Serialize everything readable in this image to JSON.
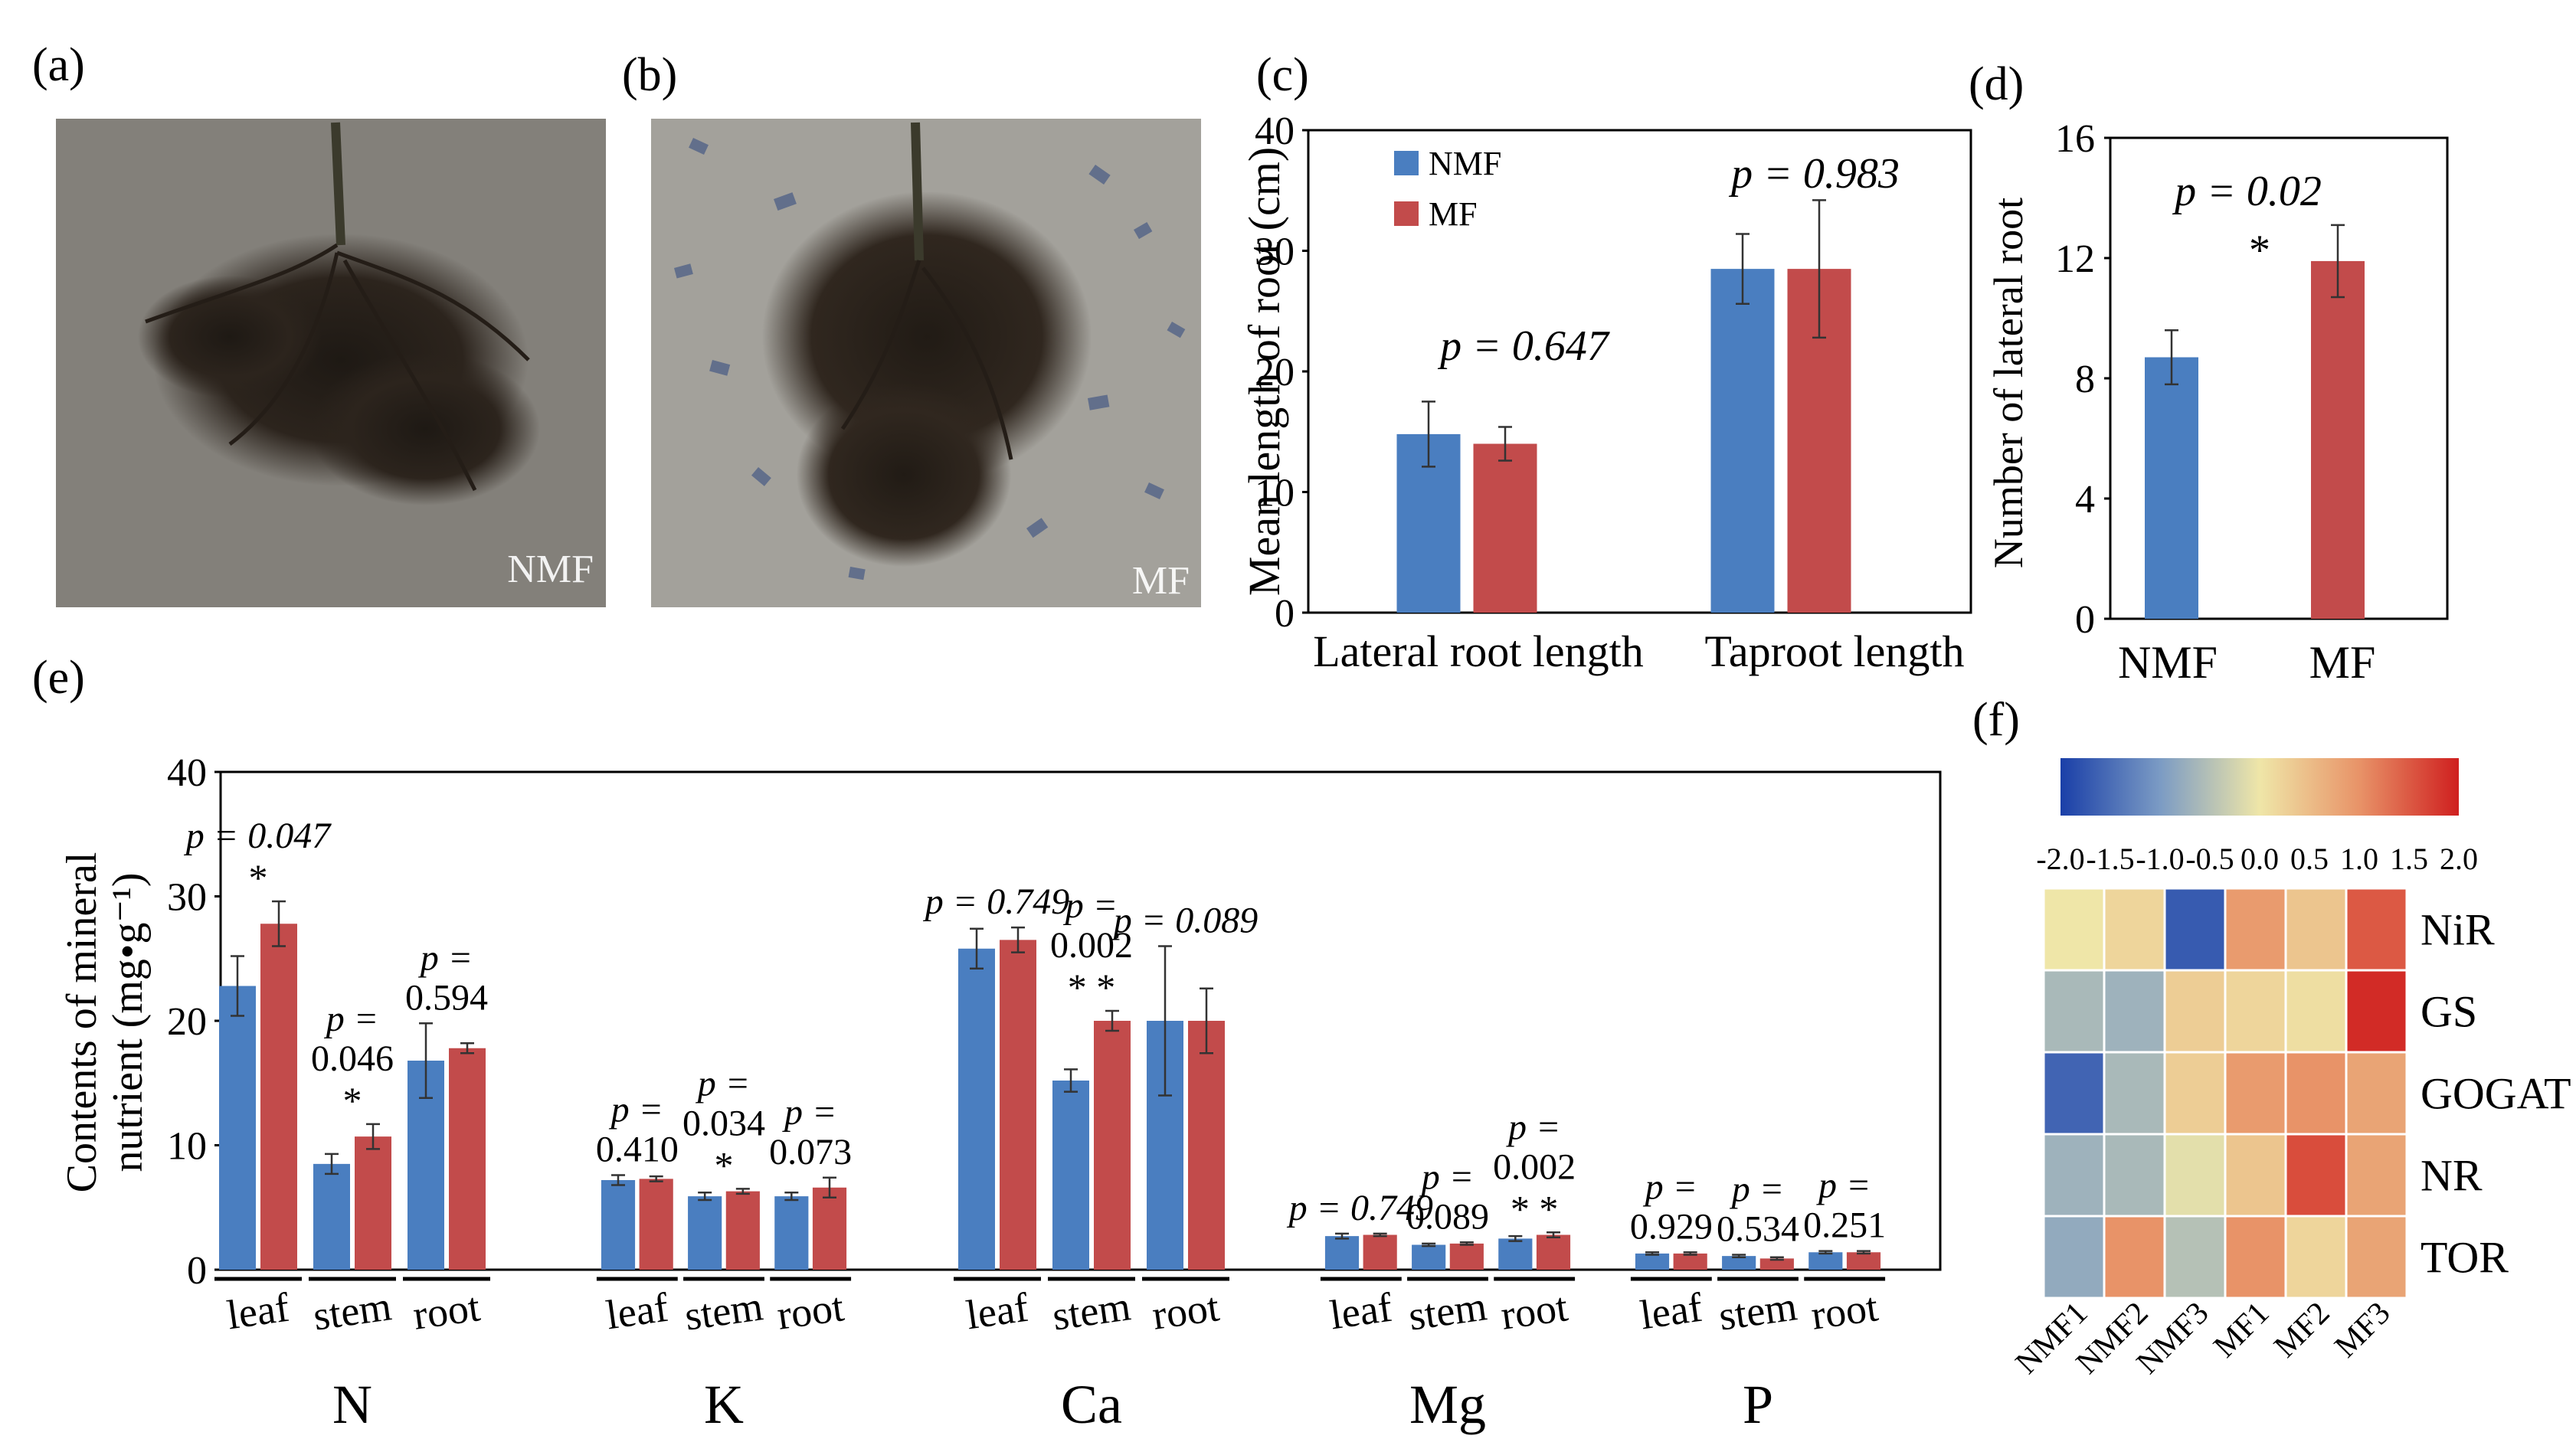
{
  "colors": {
    "nmf": "#4A7EC0",
    "mf": "#C24B4B",
    "photo_soil": "#8a8780",
    "photo_soil_mf": "#a3a19b"
  },
  "panels": {
    "a": "(a)",
    "b": "(b)",
    "c": "(c)",
    "d": "(d)",
    "e": "(e)",
    "f": "(f)"
  },
  "photos": {
    "a_label": "NMF",
    "b_label": "MF"
  },
  "chart_data": [
    {
      "id": "c",
      "type": "bar",
      "ylabel": "Mean length of root (cm)",
      "ylim": [
        0,
        40
      ],
      "yticks": [
        "0",
        "10",
        "20",
        "30",
        "40"
      ],
      "categories": [
        "Lateral root length",
        "Taproot length"
      ],
      "legend": [
        "NMF",
        "MF"
      ],
      "legend_position": "top-left",
      "series": [
        {
          "name": "NMF",
          "values": [
            14.8,
            28.5
          ],
          "errors": [
            2.7,
            2.9
          ]
        },
        {
          "name": "MF",
          "values": [
            14.0,
            28.5
          ],
          "errors": [
            1.4,
            5.7
          ]
        }
      ],
      "annotations": [
        "p = 0.647",
        "p = 0.983"
      ]
    },
    {
      "id": "d",
      "type": "bar",
      "ylabel": "Number of lateral root",
      "ylim": [
        0,
        16
      ],
      "yticks": [
        "0",
        "4",
        "8",
        "12",
        "16"
      ],
      "categories": [
        "NMF",
        "MF"
      ],
      "values": [
        8.7,
        11.9
      ],
      "errors": [
        0.9,
        1.2
      ],
      "annotations": [
        "p = 0.02",
        "*"
      ]
    },
    {
      "id": "e",
      "type": "bar",
      "ylabel_line1": "Contents of mineral",
      "ylabel_line2": "nutrient (mg•g⁻¹)",
      "ylim": [
        0,
        40
      ],
      "yticks": [
        "0",
        "10",
        "20",
        "30",
        "40"
      ],
      "tissues": [
        "leaf",
        "stem",
        "root"
      ],
      "groups": [
        {
          "name": "N",
          "nmf": [
            22.8,
            8.5,
            16.8
          ],
          "mf": [
            27.8,
            10.7,
            17.8
          ],
          "nmf_err": [
            2.4,
            0.8,
            3.0
          ],
          "mf_err": [
            1.8,
            1.0,
            0.4
          ],
          "pvals": [
            [
              "p = 0.047"
            ],
            [
              "p =",
              "0.046"
            ],
            [
              "p =",
              "0.594"
            ]
          ],
          "stars": [
            "*",
            "*",
            ""
          ]
        },
        {
          "name": "K",
          "nmf": [
            7.2,
            5.9,
            5.9
          ],
          "mf": [
            7.3,
            6.3,
            6.6
          ],
          "nmf_err": [
            0.4,
            0.3,
            0.3
          ],
          "mf_err": [
            0.2,
            0.2,
            0.8
          ],
          "pvals": [
            [
              "p =",
              "0.410"
            ],
            [
              "p =",
              "0.034"
            ],
            [
              "p =",
              "0.073"
            ]
          ],
          "stars": [
            "",
            "*",
            ""
          ]
        },
        {
          "name": "Ca",
          "nmf": [
            25.8,
            15.2,
            20.0
          ],
          "mf": [
            26.5,
            20.0,
            20.0
          ],
          "nmf_err": [
            1.6,
            0.9,
            6.0
          ],
          "mf_err": [
            1.0,
            0.8,
            2.6
          ],
          "pvals": [
            [
              "p = 0.749"
            ],
            [
              "p =",
              "0.002"
            ],
            [
              "p = 0.089"
            ]
          ],
          "stars": [
            "",
            "**",
            ""
          ]
        },
        {
          "name": "Mg",
          "nmf": [
            2.7,
            2.0,
            2.5
          ],
          "mf": [
            2.8,
            2.1,
            2.8
          ],
          "nmf_err": [
            0.2,
            0.1,
            0.2
          ],
          "mf_err": [
            0.1,
            0.1,
            0.2
          ],
          "pvals": [
            [
              "p = 0.749"
            ],
            [
              "p =",
              "0.089"
            ],
            [
              "p =",
              "0.002"
            ]
          ],
          "stars": [
            "",
            "",
            "**"
          ]
        },
        {
          "name": "P",
          "nmf": [
            1.3,
            1.1,
            1.4
          ],
          "mf": [
            1.3,
            0.9,
            1.4
          ],
          "nmf_err": [
            0.1,
            0.1,
            0.1
          ],
          "mf_err": [
            0.1,
            0.1,
            0.1
          ],
          "pvals": [
            [
              "p =",
              "0.929"
            ],
            [
              "p =",
              "0.534"
            ],
            [
              "p =",
              "0.251"
            ]
          ],
          "stars": [
            "",
            "",
            ""
          ]
        }
      ]
    },
    {
      "id": "f",
      "type": "heatmap",
      "rows": [
        "NiR",
        "GS",
        "GOGAT",
        "NR",
        "TOR"
      ],
      "cols": [
        "NMF1",
        "NMF2",
        "NMF3",
        "MF1",
        "MF2",
        "MF3"
      ],
      "values": [
        [
          0.0,
          0.2,
          -1.7,
          0.9,
          0.4,
          1.5
        ],
        [
          -0.6,
          -0.7,
          0.3,
          0.2,
          0.1,
          1.9
        ],
        [
          -1.6,
          -0.6,
          0.3,
          0.9,
          1.0,
          0.8
        ],
        [
          -0.7,
          -0.6,
          -0.1,
          0.4,
          1.6,
          0.8
        ],
        [
          -0.8,
          1.0,
          -0.5,
          1.0,
          0.2,
          0.8
        ]
      ],
      "scale_min": -2.0,
      "scale_max": 2.0,
      "scale_ticks": [
        "-2.0",
        "-1.5",
        "-1.0",
        "-0.5",
        "0.0",
        "0.5",
        "1.0",
        "1.5",
        "2.0"
      ]
    }
  ]
}
